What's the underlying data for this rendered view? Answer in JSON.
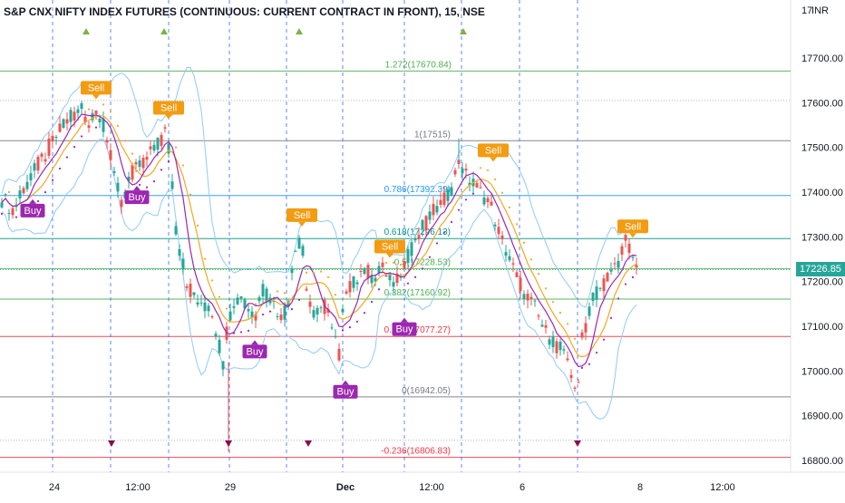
{
  "header": {
    "title": "S&P CNX NIFTY INDEX FUTURES (CONTINUOUS: CURRENT CONTRACT IN FRONT), 15, NSE",
    "currency": "INR"
  },
  "colors": {
    "up": "#26a69a",
    "down": "#ef5350",
    "sell": "#f39c12",
    "buy": "#9c27b0",
    "bollinger": "#90caf9",
    "ma_orange": "#f5a623",
    "ma_purple": "#9c27b0",
    "price_tag": "#26a69a"
  },
  "chart_data": {
    "type": "candlestick",
    "y_axis": {
      "ylim": [
        16760,
        18190
      ],
      "ticks": [
        16800,
        16900,
        17000,
        17100,
        17200,
        17300,
        17400,
        17500,
        17600,
        17700
      ],
      "tick_labels": [
        "16800.00",
        "16900.00",
        "17000.00",
        "17100.00",
        "17200.00",
        "17300.00",
        "17400.00",
        "17500.00",
        "17600.00",
        "17700.00"
      ]
    },
    "x_axis": {
      "labels": [
        "24",
        "12:00",
        "29",
        "Dec",
        "12:00",
        "6",
        "8",
        "12:00"
      ],
      "bold_labels": [
        "Dec"
      ]
    },
    "current_price": {
      "label": "17226.85",
      "value": 17226.85
    },
    "fibonacci_levels": [
      {
        "label": "1.272(17670.84)",
        "value": 17670.84,
        "color": "#4caf50"
      },
      {
        "label": "1(17515)",
        "value": 17515,
        "color": "#787b86"
      },
      {
        "label": "0.786(17392.39)",
        "value": 17392.39,
        "color": "#2196f3"
      },
      {
        "label": "0.618(17296.13)",
        "value": 17296.13,
        "color": "#009688"
      },
      {
        "label": "0.5(17228.53)",
        "value": 17228.53,
        "color": "#4caf50"
      },
      {
        "label": "0.382(17160.92)",
        "value": 17160.92,
        "color": "#4caf50"
      },
      {
        "label": "0.236(17077.27)",
        "value": 17077.27,
        "color": "#f23645"
      },
      {
        "label": "0(16942.05)",
        "value": 16942.05,
        "color": "#787b86"
      },
      {
        "label": "-0.236(16806.83)",
        "value": 16806.83,
        "color": "#f23645"
      }
    ],
    "extra_dashed_levels": [
      17605,
      16845
    ],
    "session_separators_x": [
      58,
      122,
      186,
      253,
      316,
      378,
      446,
      509,
      573,
      637
    ],
    "signals": [
      {
        "label": "Sell",
        "type": "sell",
        "x": 106,
        "price": 17600
      },
      {
        "label": "Sell",
        "type": "sell",
        "x": 186,
        "price": 17555
      },
      {
        "label": "Buy",
        "type": "buy",
        "x": 36,
        "price": 17390
      },
      {
        "label": "Buy",
        "type": "buy",
        "x": 151,
        "price": 17420
      },
      {
        "label": "Sell",
        "type": "sell",
        "x": 333,
        "price": 17315
      },
      {
        "label": "Buy",
        "type": "buy",
        "x": 281,
        "price": 17075
      },
      {
        "label": "Sell",
        "type": "sell",
        "x": 430,
        "price": 17245
      },
      {
        "label": "Buy",
        "type": "buy",
        "x": 446,
        "price": 17125
      },
      {
        "label": "Buy",
        "type": "buy",
        "x": 381,
        "price": 16985
      },
      {
        "label": "Sell",
        "type": "sell",
        "x": 544,
        "price": 17460
      },
      {
        "label": "Sell",
        "type": "sell",
        "x": 698,
        "price": 17290
      }
    ],
    "top_markers_x": [
      95,
      181,
      330,
      511
    ],
    "bottom_markers_x": [
      123,
      252,
      340,
      637
    ],
    "price_path": [
      [
        0,
        17390
      ],
      [
        15,
        17360
      ],
      [
        30,
        17420
      ],
      [
        45,
        17470
      ],
      [
        60,
        17520
      ],
      [
        75,
        17560
      ],
      [
        90,
        17580
      ],
      [
        100,
        17560
      ],
      [
        108,
        17590
      ],
      [
        118,
        17520
      ],
      [
        125,
        17440
      ],
      [
        135,
        17380
      ],
      [
        145,
        17440
      ],
      [
        160,
        17470
      ],
      [
        172,
        17500
      ],
      [
        184,
        17540
      ],
      [
        188,
        17450
      ],
      [
        194,
        17320
      ],
      [
        200,
        17250
      ],
      [
        208,
        17190
      ],
      [
        216,
        17160
      ],
      [
        224,
        17130
      ],
      [
        232,
        17150
      ],
      [
        240,
        17070
      ],
      [
        246,
        17020
      ],
      [
        252,
        17120
      ],
      [
        260,
        17170
      ],
      [
        270,
        17150
      ],
      [
        280,
        17120
      ],
      [
        290,
        17180
      ],
      [
        300,
        17160
      ],
      [
        312,
        17110
      ],
      [
        320,
        17180
      ],
      [
        326,
        17270
      ],
      [
        332,
        17300
      ],
      [
        338,
        17200
      ],
      [
        346,
        17120
      ],
      [
        356,
        17150
      ],
      [
        366,
        17110
      ],
      [
        374,
        17040
      ],
      [
        380,
        17160
      ],
      [
        390,
        17200
      ],
      [
        400,
        17230
      ],
      [
        412,
        17210
      ],
      [
        424,
        17230
      ],
      [
        434,
        17180
      ],
      [
        442,
        17220
      ],
      [
        450,
        17260
      ],
      [
        460,
        17300
      ],
      [
        470,
        17330
      ],
      [
        480,
        17360
      ],
      [
        490,
        17380
      ],
      [
        500,
        17420
      ],
      [
        506,
        17480
      ],
      [
        512,
        17440
      ],
      [
        520,
        17420
      ],
      [
        530,
        17400
      ],
      [
        540,
        17380
      ],
      [
        550,
        17310
      ],
      [
        560,
        17260
      ],
      [
        570,
        17210
      ],
      [
        580,
        17170
      ],
      [
        590,
        17140
      ],
      [
        600,
        17090
      ],
      [
        610,
        17070
      ],
      [
        620,
        17040
      ],
      [
        630,
        16990
      ],
      [
        637,
        16960
      ],
      [
        642,
        17070
      ],
      [
        650,
        17140
      ],
      [
        660,
        17180
      ],
      [
        670,
        17210
      ],
      [
        680,
        17240
      ],
      [
        690,
        17290
      ],
      [
        697,
        17260
      ],
      [
        703,
        17226
      ]
    ]
  }
}
